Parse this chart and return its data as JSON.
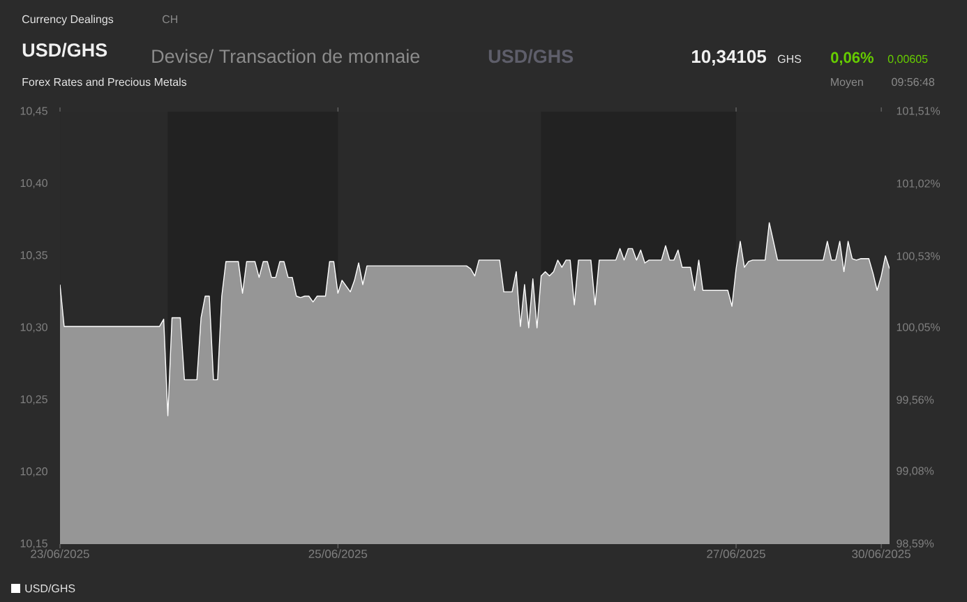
{
  "chart_data": {
    "type": "area",
    "title": "USD/GHS",
    "subtitle": "Devise/ Transaction de monnaie",
    "annotations": [
      "Currency Dealings",
      "CH",
      "USD/GHS",
      "10,34105",
      "GHS",
      "0,06%",
      "0,00605",
      "Forex Rates and Precious Metals",
      "Moyen",
      "09:56:48"
    ],
    "categories": [
      "23/06/2025",
      null,
      null,
      null,
      null,
      null,
      null,
      null,
      null,
      null,
      null,
      null,
      null,
      null,
      null,
      null,
      null,
      null,
      null,
      null,
      null,
      null,
      null,
      null,
      null,
      null,
      null,
      null,
      null,
      null,
      null,
      null,
      null,
      null,
      null,
      null,
      null,
      null,
      null,
      null,
      null,
      null,
      null,
      null,
      null,
      null,
      null,
      null,
      null,
      null,
      null,
      null,
      null,
      null,
      null,
      null,
      null,
      null,
      null,
      null,
      null,
      null,
      null,
      null,
      null,
      null,
      null,
      "25/06/2025",
      null,
      null,
      null,
      null,
      null,
      null,
      null,
      null,
      null,
      null,
      null,
      null,
      null,
      null,
      null,
      null,
      null,
      null,
      null,
      null,
      null,
      null,
      null,
      null,
      null,
      null,
      null,
      null,
      null,
      null,
      null,
      null,
      null,
      null,
      null,
      null,
      null,
      null,
      null,
      null,
      null,
      null,
      null,
      null,
      null,
      null,
      null,
      null,
      null,
      null,
      null,
      null,
      null,
      null,
      null,
      null,
      null,
      null,
      null,
      null,
      null,
      null,
      null,
      null,
      null,
      null,
      null,
      null,
      null,
      null,
      null,
      null,
      null,
      null,
      null,
      null,
      null,
      null,
      null,
      null,
      null,
      null,
      null,
      null,
      null,
      null,
      null,
      null,
      null,
      null,
      null,
      null,
      null,
      null,
      null,
      "27/06/2025",
      null,
      null,
      null,
      null,
      null,
      null,
      null,
      null,
      null,
      null,
      null,
      null,
      null,
      null,
      null,
      null,
      null,
      null,
      null,
      null,
      null,
      null,
      null,
      null,
      null,
      null,
      null,
      null,
      null,
      null,
      null,
      null,
      null,
      null,
      "30/06/2025",
      null,
      null
    ],
    "series": [
      {
        "name": "USD/GHS",
        "color": "#ffffff",
        "values": [
          10.33,
          10.301,
          10.301,
          10.301,
          10.301,
          10.301,
          10.301,
          10.301,
          10.301,
          10.301,
          10.301,
          10.301,
          10.301,
          10.301,
          10.301,
          10.301,
          10.301,
          10.301,
          10.301,
          10.301,
          10.301,
          10.301,
          10.301,
          10.301,
          10.301,
          10.306,
          10.239,
          10.307,
          10.307,
          10.307,
          10.264,
          10.264,
          10.264,
          10.264,
          10.307,
          10.322,
          10.322,
          10.264,
          10.264,
          10.322,
          10.346,
          10.346,
          10.346,
          10.346,
          10.324,
          10.346,
          10.346,
          10.346,
          10.335,
          10.346,
          10.346,
          10.335,
          10.335,
          10.346,
          10.346,
          10.335,
          10.335,
          10.322,
          10.321,
          10.322,
          10.322,
          10.318,
          10.322,
          10.322,
          10.322,
          10.346,
          10.346,
          10.324,
          10.333,
          10.329,
          10.325,
          10.333,
          10.345,
          10.33,
          10.343,
          10.343,
          10.343,
          10.343,
          10.343,
          10.343,
          10.343,
          10.343,
          10.343,
          10.343,
          10.343,
          10.343,
          10.343,
          10.343,
          10.343,
          10.343,
          10.343,
          10.343,
          10.343,
          10.343,
          10.343,
          10.343,
          10.343,
          10.343,
          10.343,
          10.341,
          10.336,
          10.347,
          10.347,
          10.347,
          10.347,
          10.347,
          10.347,
          10.325,
          10.325,
          10.325,
          10.339,
          10.301,
          10.33,
          10.3,
          10.334,
          10.3,
          10.336,
          10.339,
          10.336,
          10.339,
          10.347,
          10.342,
          10.347,
          10.347,
          10.316,
          10.347,
          10.347,
          10.347,
          10.347,
          10.316,
          10.347,
          10.347,
          10.347,
          10.347,
          10.347,
          10.355,
          10.347,
          10.355,
          10.355,
          10.347,
          10.354,
          10.345,
          10.347,
          10.347,
          10.347,
          10.347,
          10.357,
          10.347,
          10.347,
          10.354,
          10.342,
          10.342,
          10.342,
          10.326,
          10.347,
          10.326,
          10.326,
          10.326,
          10.326,
          10.326,
          10.326,
          10.326,
          10.315,
          10.341,
          10.36,
          10.342,
          10.346,
          10.347,
          10.347,
          10.347,
          10.347,
          10.373,
          10.36,
          10.347,
          10.347,
          10.347,
          10.347,
          10.347,
          10.347,
          10.347,
          10.347,
          10.347,
          10.347,
          10.347,
          10.347,
          10.36,
          10.347,
          10.347,
          10.36,
          10.339,
          10.36,
          10.348,
          10.347,
          10.348,
          10.348,
          10.348,
          10.338,
          10.326,
          10.336,
          10.35,
          10.341
        ]
      }
    ],
    "ylim": [
      10.15,
      10.45
    ],
    "yticks": [
      {
        "value": 10.15,
        "label": "10,15"
      },
      {
        "value": 10.2,
        "label": "10,20"
      },
      {
        "value": 10.25,
        "label": "10,25"
      },
      {
        "value": 10.3,
        "label": "10,30"
      },
      {
        "value": 10.35,
        "label": "10,35"
      },
      {
        "value": 10.4,
        "label": "10,40"
      },
      {
        "value": 10.45,
        "label": "10,45"
      }
    ],
    "y2lim": [
      98.59,
      101.51
    ],
    "y2ticks": [
      {
        "value": 98.59,
        "label": "98,59%"
      },
      {
        "value": 99.08,
        "label": "99,08%"
      },
      {
        "value": 99.56,
        "label": "99,56%"
      },
      {
        "value": 100.05,
        "label": "100,05%"
      },
      {
        "value": 100.53,
        "label": "100,53%"
      },
      {
        "value": 101.02,
        "label": "101,02%"
      },
      {
        "value": 101.51,
        "label": "101,51%"
      }
    ],
    "legend": "bottom left",
    "marker": "none",
    "line_style": "solid",
    "grid": false
  }
}
